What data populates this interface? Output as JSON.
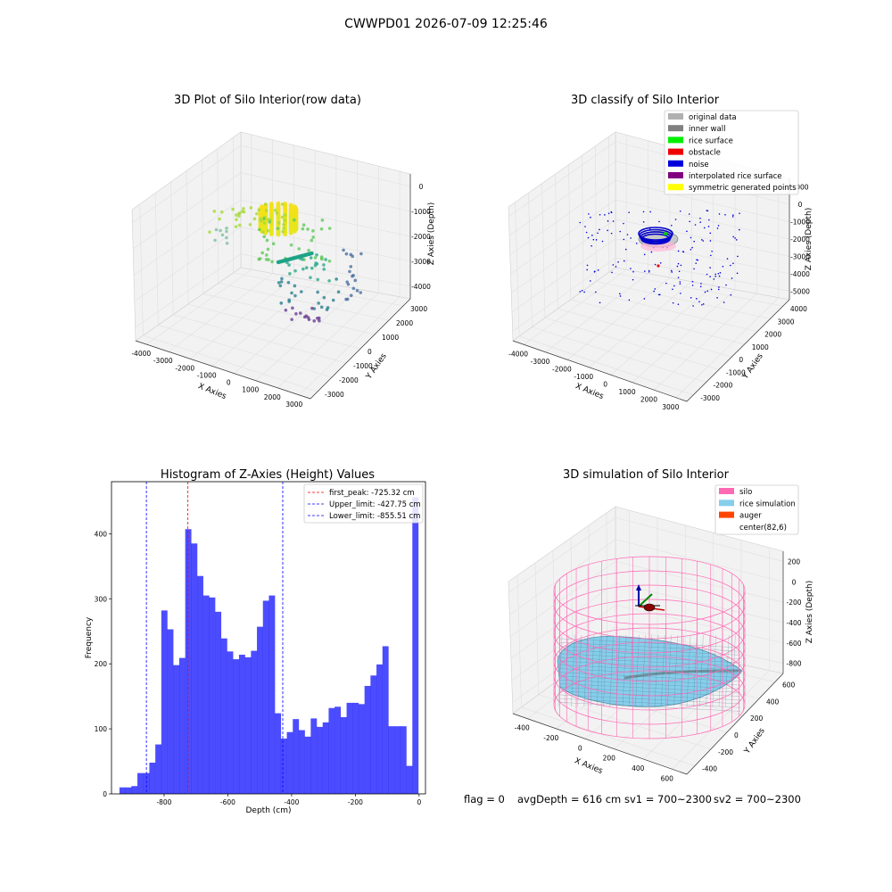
{
  "suptitle": "CWWPD01 2026-07-09 12:25:46",
  "panels": {
    "raw": {
      "title": "3D Plot of Silo Interior(row data)",
      "xlabel": "X Axies",
      "ylabel": "Y Axies",
      "zlabel": "Z Axies (Depth)",
      "xticks": [
        "-4000",
        "-3000",
        "-2000",
        "-1000",
        "0",
        "1000",
        "2000",
        "3000"
      ],
      "yticks": [
        "-3000",
        "-2000",
        "-1000",
        "0",
        "1000",
        "2000",
        "3000"
      ],
      "zticks": [
        "0",
        "-1000",
        "-2000",
        "-3000",
        "-4000"
      ]
    },
    "classify": {
      "title": "3D classify of Silo Interior",
      "xlabel": "X Axies",
      "ylabel": "Y Axies",
      "zlabel": "Z Axies (Depth)",
      "xticks": [
        "-4000",
        "-3000",
        "-2000",
        "-1000",
        "0",
        "1000",
        "2000",
        "3000"
      ],
      "yticks": [
        "-3000",
        "-2000",
        "-1000",
        "0",
        "1000",
        "2000",
        "3000",
        "4000"
      ],
      "zticks": [
        "1000",
        "0",
        "-1000",
        "-2000",
        "-3000",
        "-4000",
        "-5000"
      ],
      "legend": [
        {
          "label": "original data",
          "color": "#b0b0b0"
        },
        {
          "label": "inner wall",
          "color": "#808080"
        },
        {
          "label": "rice surface",
          "color": "#00ee00"
        },
        {
          "label": "obstacle",
          "color": "#ee0000"
        },
        {
          "label": "noise",
          "color": "#0000dd"
        },
        {
          "label": "interpolated rice surface",
          "color": "#800080"
        },
        {
          "label": "symmetric generated points",
          "color": "#ffff00"
        }
      ]
    },
    "simulation": {
      "title": "3D simulation of Silo Interior",
      "xlabel": "X Axies",
      "ylabel": "Y Axies",
      "zlabel": "Z Axies (Depth)",
      "xticks": [
        "-400",
        "-200",
        "0",
        "200",
        "400",
        "600"
      ],
      "yticks": [
        "-400",
        "-200",
        "0",
        "200",
        "400",
        "600"
      ],
      "zticks": [
        "200",
        "0",
        "-200",
        "-400",
        "-600",
        "-800"
      ],
      "legend": [
        {
          "label": "silo",
          "color": "#ff69b4"
        },
        {
          "label": "rice simulation",
          "color": "#87ceeb"
        },
        {
          "label": "auger",
          "color": "#ff4500"
        },
        {
          "label": "center(82,6)",
          "color": ""
        }
      ]
    }
  },
  "status": {
    "flag": "flag = 0",
    "avg": "avgDepth = 616 cm",
    "sv1": "sv1 = 700~2300",
    "sv2": "sv2 = 700~2300"
  },
  "chart_data": [
    {
      "type": "bar",
      "title": "Histogram of Z-Axies (Height) Values",
      "xlabel": "Depth (cm)",
      "ylabel": "Frequency",
      "bar_color": "#0000ff",
      "bin_start": -940,
      "bin_width": 18.75,
      "values": [
        10,
        10,
        12,
        32,
        32,
        48,
        76,
        282,
        253,
        198,
        209,
        407,
        385,
        335,
        305,
        302,
        280,
        239,
        219,
        207,
        214,
        210,
        220,
        257,
        297,
        305,
        124,
        85,
        95,
        115,
        98,
        88,
        116,
        103,
        110,
        132,
        134,
        118,
        140,
        140,
        138,
        166,
        182,
        199,
        227,
        104,
        104,
        104,
        43,
        456
      ],
      "xlim": [
        -965,
        20
      ],
      "ylim": [
        0,
        480
      ],
      "xticks": [
        -800,
        -600,
        -400,
        -200,
        0
      ],
      "yticks": [
        0,
        100,
        200,
        300,
        400
      ],
      "vlines": [
        {
          "x": -725.32,
          "color": "#ff0000",
          "label": "first_peak: -725.32 cm"
        },
        {
          "x": -427.75,
          "color": "#0000ff",
          "label": "Upper_limit: -427.75 cm"
        },
        {
          "x": -855.51,
          "color": "#0000ff",
          "label": "Lower_limit: -855.51 cm"
        }
      ],
      "legend_position": "top-right"
    }
  ]
}
